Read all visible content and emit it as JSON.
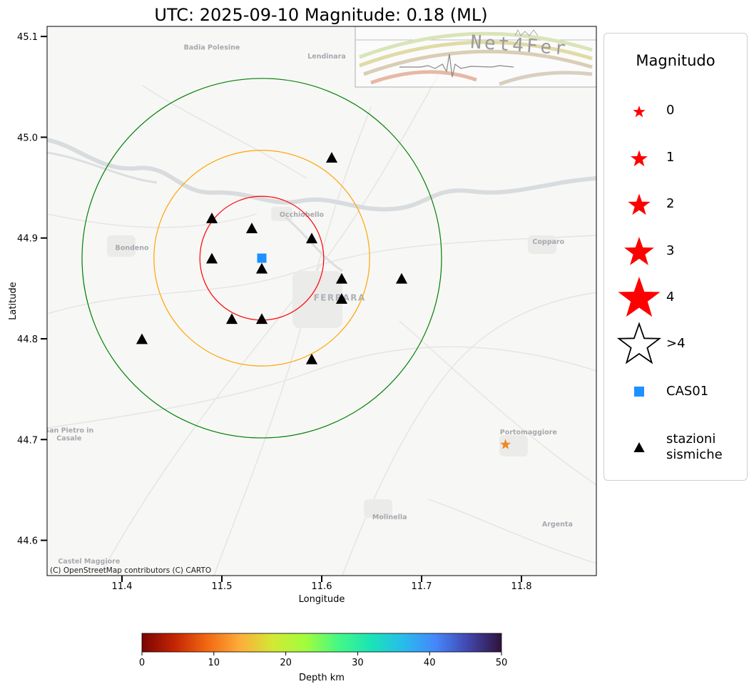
{
  "title": "UTC: 2025-09-10 Magnitude: 0.18 (ML)",
  "map": {
    "xlabel": "Longitude",
    "ylabel": "Latitude",
    "xlim": [
      11.325,
      11.875
    ],
    "ylim": [
      44.565,
      45.11
    ],
    "xticks": [
      "11.4",
      "11.5",
      "11.6",
      "11.7",
      "11.8"
    ],
    "yticks": [
      "44.6",
      "44.7",
      "44.8",
      "44.9",
      "45.0",
      "45.1"
    ],
    "attribution": "(C) OpenStreetMap contributors (C) CARTO",
    "place_labels": [
      {
        "name": "Badia Polesine",
        "lon": 11.49,
        "lat": 45.087
      },
      {
        "name": "Lendinara",
        "lon": 11.605,
        "lat": 45.078
      },
      {
        "name": "Occhiobello",
        "lon": 11.58,
        "lat": 44.921
      },
      {
        "name": "Bondeno",
        "lon": 11.41,
        "lat": 44.888
      },
      {
        "name": "FERRARA",
        "lon": 11.618,
        "lat": 44.838
      },
      {
        "name": "Copparo",
        "lon": 11.827,
        "lat": 44.894
      },
      {
        "name": "Portomaggiore",
        "lon": 11.807,
        "lat": 44.705
      },
      {
        "name": "San Pietro in",
        "lon": 11.347,
        "lat": 44.707
      },
      {
        "name": "Casale",
        "lon": 11.347,
        "lat": 44.699
      },
      {
        "name": "Molinella",
        "lon": 11.668,
        "lat": 44.621
      },
      {
        "name": "Argenta",
        "lon": 11.836,
        "lat": 44.614
      },
      {
        "name": "Castel Maggiore",
        "lon": 11.367,
        "lat": 44.577
      }
    ],
    "station": {
      "name": "CAS01",
      "lon": 11.54,
      "lat": 44.88,
      "color": "#1e90ff"
    },
    "circles": [
      {
        "radius_deg": 0.062,
        "color": "#ff0000"
      },
      {
        "radius_deg": 0.108,
        "color": "#ffa500"
      },
      {
        "radius_deg": 0.18,
        "color": "#008000"
      }
    ],
    "seismic_stations": [
      {
        "lon": 11.61,
        "lat": 44.98
      },
      {
        "lon": 11.49,
        "lat": 44.92
      },
      {
        "lon": 11.53,
        "lat": 44.91
      },
      {
        "lon": 11.59,
        "lat": 44.9
      },
      {
        "lon": 11.49,
        "lat": 44.88
      },
      {
        "lon": 11.54,
        "lat": 44.87
      },
      {
        "lon": 11.62,
        "lat": 44.86
      },
      {
        "lon": 11.68,
        "lat": 44.86
      },
      {
        "lon": 11.62,
        "lat": 44.84
      },
      {
        "lon": 11.51,
        "lat": 44.82
      },
      {
        "lon": 11.54,
        "lat": 44.82
      },
      {
        "lon": 11.42,
        "lat": 44.8
      },
      {
        "lon": 11.59,
        "lat": 44.78
      }
    ],
    "event": {
      "lon": 11.784,
      "lat": 44.695,
      "magnitude": 0.18,
      "color": "#f5861f"
    },
    "logo_text": "Net4Fer"
  },
  "legend": {
    "title": "Magnitudo",
    "items": [
      {
        "label": "0",
        "symbol": "star",
        "size": 0
      },
      {
        "label": "1",
        "symbol": "star",
        "size": 1
      },
      {
        "label": "2",
        "symbol": "star",
        "size": 2
      },
      {
        "label": "3",
        "symbol": "star",
        "size": 3
      },
      {
        "label": "4",
        "symbol": "star",
        "size": 4
      },
      {
        "label": ">4",
        "symbol": "star-outline",
        "size": 5
      },
      {
        "label": "CAS01",
        "symbol": "square"
      },
      {
        "label": "stazioni\nsismiche",
        "symbol": "triangle"
      }
    ]
  },
  "colorbar": {
    "label": "Depth km",
    "ticks": [
      "0",
      "10",
      "20",
      "30",
      "40",
      "50"
    ],
    "colors": [
      "#7a0403",
      "#c42503",
      "#f26913",
      "#fdad3a",
      "#d2e935",
      "#a2fc3c",
      "#46f884",
      "#1ae4b6",
      "#28bceb",
      "#4686fb",
      "#4145ab",
      "#30123b"
    ]
  }
}
